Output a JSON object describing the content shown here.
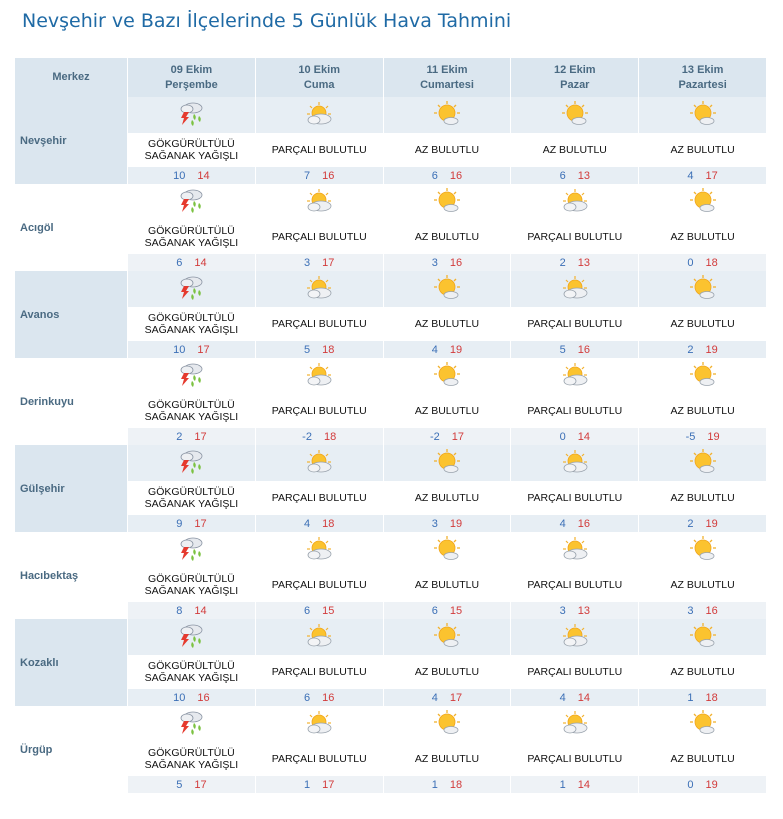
{
  "title": "Nevşehir ve Bazı İlçelerinde 5 Günlük Hava Tahmini",
  "header": {
    "col0": "Merkez",
    "days": [
      {
        "date": "09 Ekim",
        "day": "Perşembe"
      },
      {
        "date": "10 Ekim",
        "day": "Cuma"
      },
      {
        "date": "11 Ekim",
        "day": "Cumartesi"
      },
      {
        "date": "12 Ekim",
        "day": "Pazar"
      },
      {
        "date": "13 Ekim",
        "day": "Pazartesi"
      }
    ]
  },
  "rows": [
    {
      "city": "Nevşehir",
      "days": [
        {
          "icon": "thunderstorm-icon",
          "cond": [
            "GÖKGÜRÜLTÜLÜ",
            "SAĞANAK YAĞIŞLI"
          ],
          "lo": "10",
          "hi": "14"
        },
        {
          "icon": "partly-cloudy-icon",
          "cond": [
            "PARÇALI BULUTLU"
          ],
          "lo": "7",
          "hi": "16"
        },
        {
          "icon": "mostly-sunny-icon",
          "cond": [
            "AZ BULUTLU"
          ],
          "lo": "6",
          "hi": "16"
        },
        {
          "icon": "mostly-sunny-icon",
          "cond": [
            "AZ BULUTLU"
          ],
          "lo": "6",
          "hi": "13"
        },
        {
          "icon": "mostly-sunny-icon",
          "cond": [
            "AZ BULUTLU"
          ],
          "lo": "4",
          "hi": "17"
        }
      ]
    },
    {
      "city": "Acıgöl",
      "days": [
        {
          "icon": "thunderstorm-icon",
          "cond": [
            "GÖKGÜRÜLTÜLÜ",
            "SAĞANAK YAĞIŞLI"
          ],
          "lo": "6",
          "hi": "14"
        },
        {
          "icon": "partly-cloudy-icon",
          "cond": [
            "PARÇALI BULUTLU"
          ],
          "lo": "3",
          "hi": "17"
        },
        {
          "icon": "mostly-sunny-icon",
          "cond": [
            "AZ BULUTLU"
          ],
          "lo": "3",
          "hi": "16"
        },
        {
          "icon": "partly-cloudy-icon",
          "cond": [
            "PARÇALI BULUTLU"
          ],
          "lo": "2",
          "hi": "13"
        },
        {
          "icon": "mostly-sunny-icon",
          "cond": [
            "AZ BULUTLU"
          ],
          "lo": "0",
          "hi": "18"
        }
      ]
    },
    {
      "city": "Avanos",
      "days": [
        {
          "icon": "thunderstorm-icon",
          "cond": [
            "GÖKGÜRÜLTÜLÜ",
            "SAĞANAK YAĞIŞLI"
          ],
          "lo": "10",
          "hi": "17"
        },
        {
          "icon": "partly-cloudy-icon",
          "cond": [
            "PARÇALI BULUTLU"
          ],
          "lo": "5",
          "hi": "18"
        },
        {
          "icon": "mostly-sunny-icon",
          "cond": [
            "AZ BULUTLU"
          ],
          "lo": "4",
          "hi": "19"
        },
        {
          "icon": "partly-cloudy-icon",
          "cond": [
            "PARÇALI BULUTLU"
          ],
          "lo": "5",
          "hi": "16"
        },
        {
          "icon": "mostly-sunny-icon",
          "cond": [
            "AZ BULUTLU"
          ],
          "lo": "2",
          "hi": "19"
        }
      ]
    },
    {
      "city": "Derinkuyu",
      "days": [
        {
          "icon": "thunderstorm-icon",
          "cond": [
            "GÖKGÜRÜLTÜLÜ",
            "SAĞANAK YAĞIŞLI"
          ],
          "lo": "2",
          "hi": "17"
        },
        {
          "icon": "partly-cloudy-icon",
          "cond": [
            "PARÇALI BULUTLU"
          ],
          "lo": "-2",
          "hi": "18"
        },
        {
          "icon": "mostly-sunny-icon",
          "cond": [
            "AZ BULUTLU"
          ],
          "lo": "-2",
          "hi": "17"
        },
        {
          "icon": "partly-cloudy-icon",
          "cond": [
            "PARÇALI BULUTLU"
          ],
          "lo": "0",
          "hi": "14"
        },
        {
          "icon": "mostly-sunny-icon",
          "cond": [
            "AZ BULUTLU"
          ],
          "lo": "-5",
          "hi": "19"
        }
      ]
    },
    {
      "city": "Gülşehir",
      "days": [
        {
          "icon": "thunderstorm-icon",
          "cond": [
            "GÖKGÜRÜLTÜLÜ",
            "SAĞANAK YAĞIŞLI"
          ],
          "lo": "9",
          "hi": "17"
        },
        {
          "icon": "partly-cloudy-icon",
          "cond": [
            "PARÇALI BULUTLU"
          ],
          "lo": "4",
          "hi": "18"
        },
        {
          "icon": "mostly-sunny-icon",
          "cond": [
            "AZ BULUTLU"
          ],
          "lo": "3",
          "hi": "19"
        },
        {
          "icon": "partly-cloudy-icon",
          "cond": [
            "PARÇALI BULUTLU"
          ],
          "lo": "4",
          "hi": "16"
        },
        {
          "icon": "mostly-sunny-icon",
          "cond": [
            "AZ BULUTLU"
          ],
          "lo": "2",
          "hi": "19"
        }
      ]
    },
    {
      "city": "Hacıbektaş",
      "days": [
        {
          "icon": "thunderstorm-icon",
          "cond": [
            "GÖKGÜRÜLTÜLÜ",
            "SAĞANAK YAĞIŞLI"
          ],
          "lo": "8",
          "hi": "14"
        },
        {
          "icon": "partly-cloudy-icon",
          "cond": [
            "PARÇALI BULUTLU"
          ],
          "lo": "6",
          "hi": "15"
        },
        {
          "icon": "mostly-sunny-icon",
          "cond": [
            "AZ BULUTLU"
          ],
          "lo": "6",
          "hi": "15"
        },
        {
          "icon": "partly-cloudy-icon",
          "cond": [
            "PARÇALI BULUTLU"
          ],
          "lo": "3",
          "hi": "13"
        },
        {
          "icon": "mostly-sunny-icon",
          "cond": [
            "AZ BULUTLU"
          ],
          "lo": "3",
          "hi": "16"
        }
      ]
    },
    {
      "city": "Kozaklı",
      "days": [
        {
          "icon": "thunderstorm-icon",
          "cond": [
            "GÖKGÜRÜLTÜLÜ",
            "SAĞANAK YAĞIŞLI"
          ],
          "lo": "10",
          "hi": "16"
        },
        {
          "icon": "partly-cloudy-icon",
          "cond": [
            "PARÇALI BULUTLU"
          ],
          "lo": "6",
          "hi": "16"
        },
        {
          "icon": "mostly-sunny-icon",
          "cond": [
            "AZ BULUTLU"
          ],
          "lo": "4",
          "hi": "17"
        },
        {
          "icon": "partly-cloudy-icon",
          "cond": [
            "PARÇALI BULUTLU"
          ],
          "lo": "4",
          "hi": "14"
        },
        {
          "icon": "mostly-sunny-icon",
          "cond": [
            "AZ BULUTLU"
          ],
          "lo": "1",
          "hi": "18"
        }
      ]
    },
    {
      "city": "Ürgüp",
      "days": [
        {
          "icon": "thunderstorm-icon",
          "cond": [
            "GÖKGÜRÜLTÜLÜ",
            "SAĞANAK YAĞIŞLI"
          ],
          "lo": "5",
          "hi": "17"
        },
        {
          "icon": "partly-cloudy-icon",
          "cond": [
            "PARÇALI BULUTLU"
          ],
          "lo": "1",
          "hi": "17"
        },
        {
          "icon": "mostly-sunny-icon",
          "cond": [
            "AZ BULUTLU"
          ],
          "lo": "1",
          "hi": "18"
        },
        {
          "icon": "partly-cloudy-icon",
          "cond": [
            "PARÇALI BULUTLU"
          ],
          "lo": "1",
          "hi": "14"
        },
        {
          "icon": "mostly-sunny-icon",
          "cond": [
            "AZ BULUTLU"
          ],
          "lo": "0",
          "hi": "19"
        }
      ]
    }
  ],
  "colors": {
    "title": "#1f6aa5",
    "header_bg": "#dbe6ef",
    "low_temp": "#3b6fb6",
    "high_temp": "#d23b3b"
  }
}
